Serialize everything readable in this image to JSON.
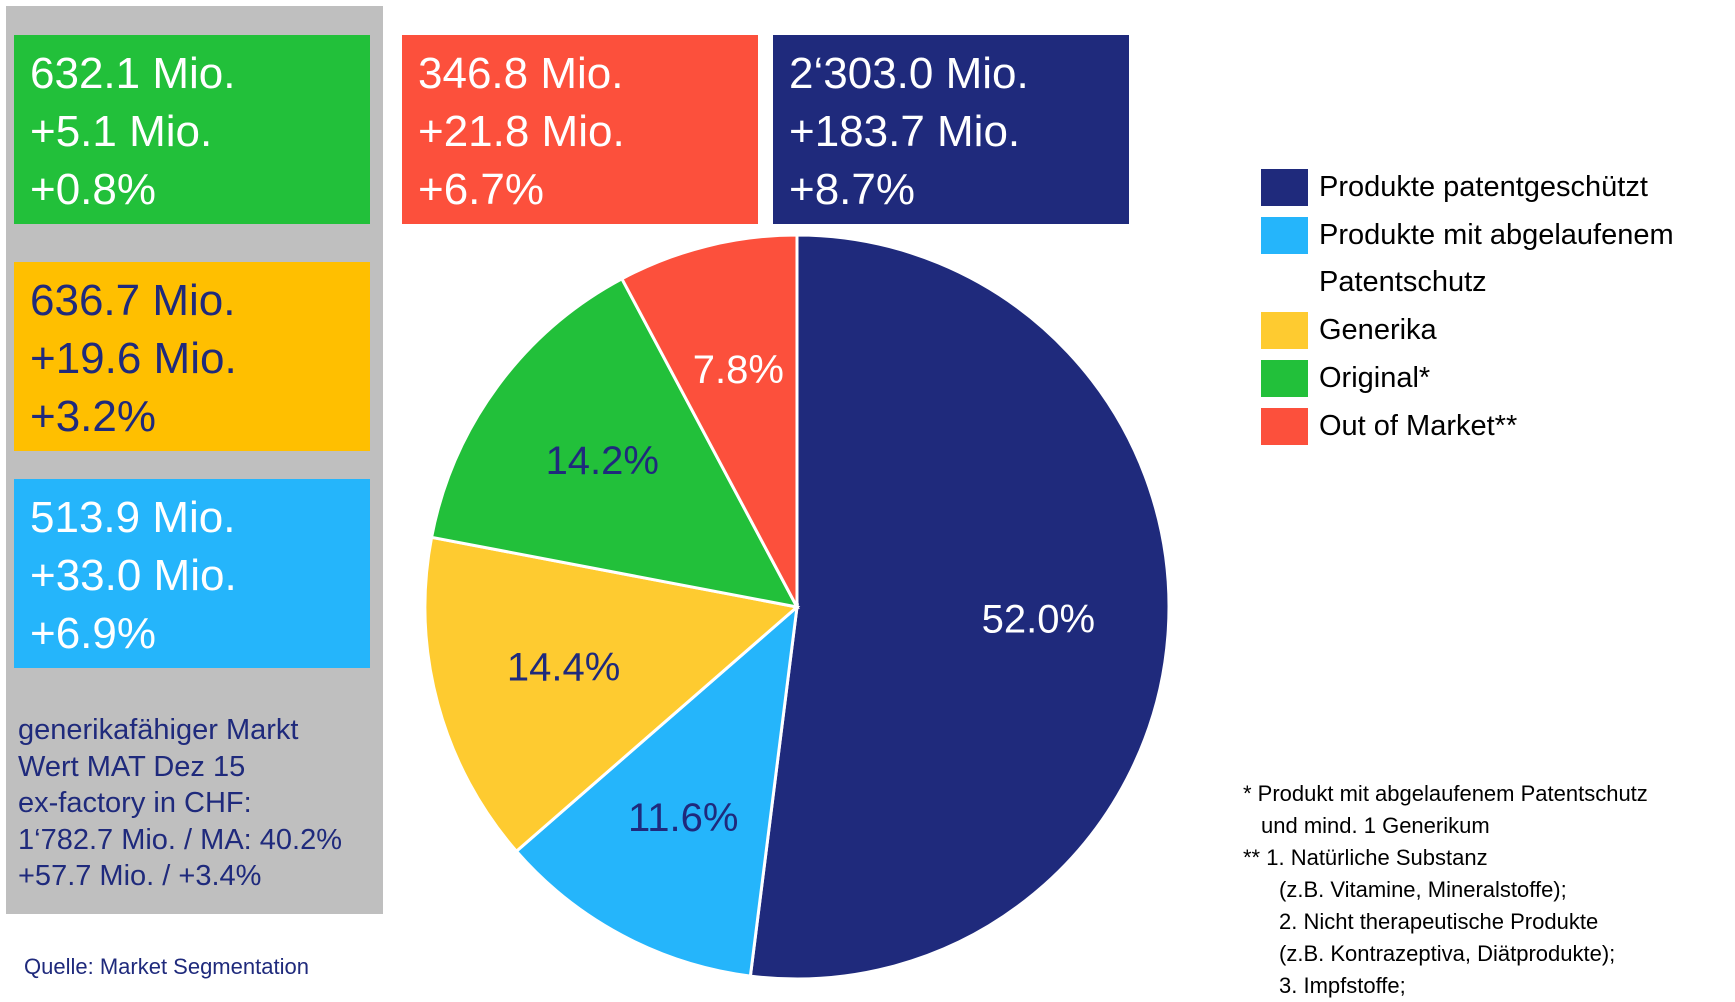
{
  "chart_data": {
    "type": "pie",
    "categories": [
      "Produkte patentgeschützt",
      "Produkte mit abgelaufenem Patentschutz",
      "Generika",
      "Original*",
      "Out of Market**"
    ],
    "values": [
      52.0,
      11.6,
      14.4,
      14.2,
      7.8
    ],
    "value_labels": [
      "52.0%",
      "11.6%",
      "14.4%",
      "14.2%",
      "7.8%"
    ],
    "colors": [
      "#1f2a7c",
      "#25b5fb",
      "#fecb30",
      "#22c03a",
      "#fc503c"
    ],
    "label_colors": [
      "#ffffff",
      "#1f2a7c",
      "#1f2a7c",
      "#1f2a7c",
      "#ffffff"
    ],
    "boxes": [
      {
        "lines": [
          "632.1 Mio.",
          "+5.1 Mio.",
          "+0.8%"
        ],
        "color": "#22c03a",
        "text_color": "#ffffff"
      },
      {
        "lines": [
          "636.7 Mio.",
          "+19.6 Mio.",
          "+3.2%"
        ],
        "color": "#ffbf00",
        "text_color": "#1f2a7c"
      },
      {
        "lines": [
          "513.9 Mio.",
          "+33.0 Mio.",
          "+6.9%"
        ],
        "color": "#25b5fb",
        "text_color": "#ffffff"
      },
      {
        "lines": [
          "346.8 Mio.",
          "+21.8 Mio.",
          "+6.7%"
        ],
        "color": "#fc503c",
        "text_color": "#ffffff"
      },
      {
        "lines": [
          "2‘303.0 Mio.",
          "+183.7 Mio.",
          "+8.7%"
        ],
        "color": "#1f2a7c",
        "text_color": "#ffffff"
      }
    ],
    "market_note": [
      "generikafähiger Markt",
      "Wert MAT Dez 15",
      "ex-factory in CHF:",
      "1‘782.7 Mio. / MA: 40.2%",
      "+57.7 Mio. / +3.4%"
    ],
    "source": "Quelle: Market Segmentation",
    "footnotes": [
      "* Produkt mit abgelaufenem Patentschutz",
      "und mind. 1 Generikum",
      "** 1. Natürliche Substanz",
      "(z.B. Vitamine, Mineralstoffe);",
      "2. Nicht therapeutische Produkte",
      "(z.B. Kontrazeptiva, Diätprodukte);",
      "3. Impfstoffe;"
    ]
  }
}
